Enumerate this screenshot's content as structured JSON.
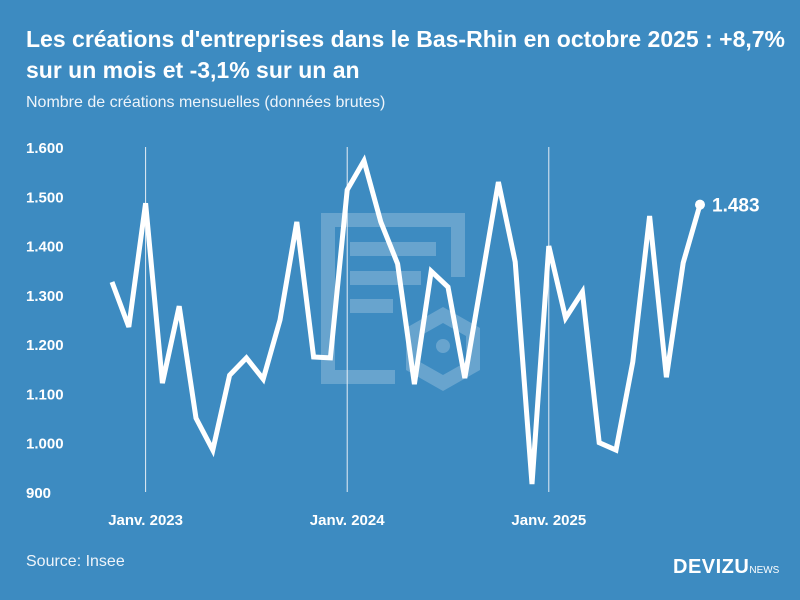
{
  "title": "Les créations d'entreprises dans le Bas-Rhin en octobre 2025 : +8,7% sur un mois et -3,1% sur un an",
  "subtitle": "Nombre de créations mensuelles (données brutes)",
  "source": "Source: Insee",
  "logo": {
    "main": "DEVIZU",
    "suffix": "NEWS"
  },
  "colors": {
    "background": "#3d8bc1",
    "line": "#ffffff"
  },
  "chart_data": {
    "type": "line",
    "title": "Les créations d'entreprises dans le Bas-Rhin en octobre 2025 : +8,7% sur un mois et -3,1% sur un an",
    "subtitle": "Nombre de créations mensuelles (données brutes)",
    "x_start": "2022-11",
    "x_end": "2025-10",
    "x_frequency": "monthly",
    "x_ticks": [
      {
        "label": "Janv. 2023",
        "index": 2
      },
      {
        "label": "Janv. 2024",
        "index": 14
      },
      {
        "label": "Janv. 2025",
        "index": 26
      }
    ],
    "ylim": [
      900,
      1600
    ],
    "y_ticks": [
      {
        "value": 900,
        "label": "900"
      },
      {
        "value": 1000,
        "label": "1.000"
      },
      {
        "value": 1100,
        "label": "1.100"
      },
      {
        "value": 1200,
        "label": "1.200"
      },
      {
        "value": 1300,
        "label": "1.300"
      },
      {
        "value": 1400,
        "label": "1.400"
      },
      {
        "value": 1500,
        "label": "1.500"
      },
      {
        "value": 1600,
        "label": "1.600"
      }
    ],
    "grid": "vertical lines at January",
    "values": [
      1326,
      1235,
      1486,
      1121,
      1277,
      1050,
      985,
      1137,
      1172,
      1129,
      1249,
      1448,
      1174,
      1172,
      1513,
      1572,
      1448,
      1363,
      1119,
      1348,
      1316,
      1131,
      1330,
      1529,
      1367,
      916,
      1399,
      1253,
      1306,
      1000,
      985,
      1164,
      1460,
      1133,
      1365,
      1483
    ],
    "last_label": "1.483"
  }
}
